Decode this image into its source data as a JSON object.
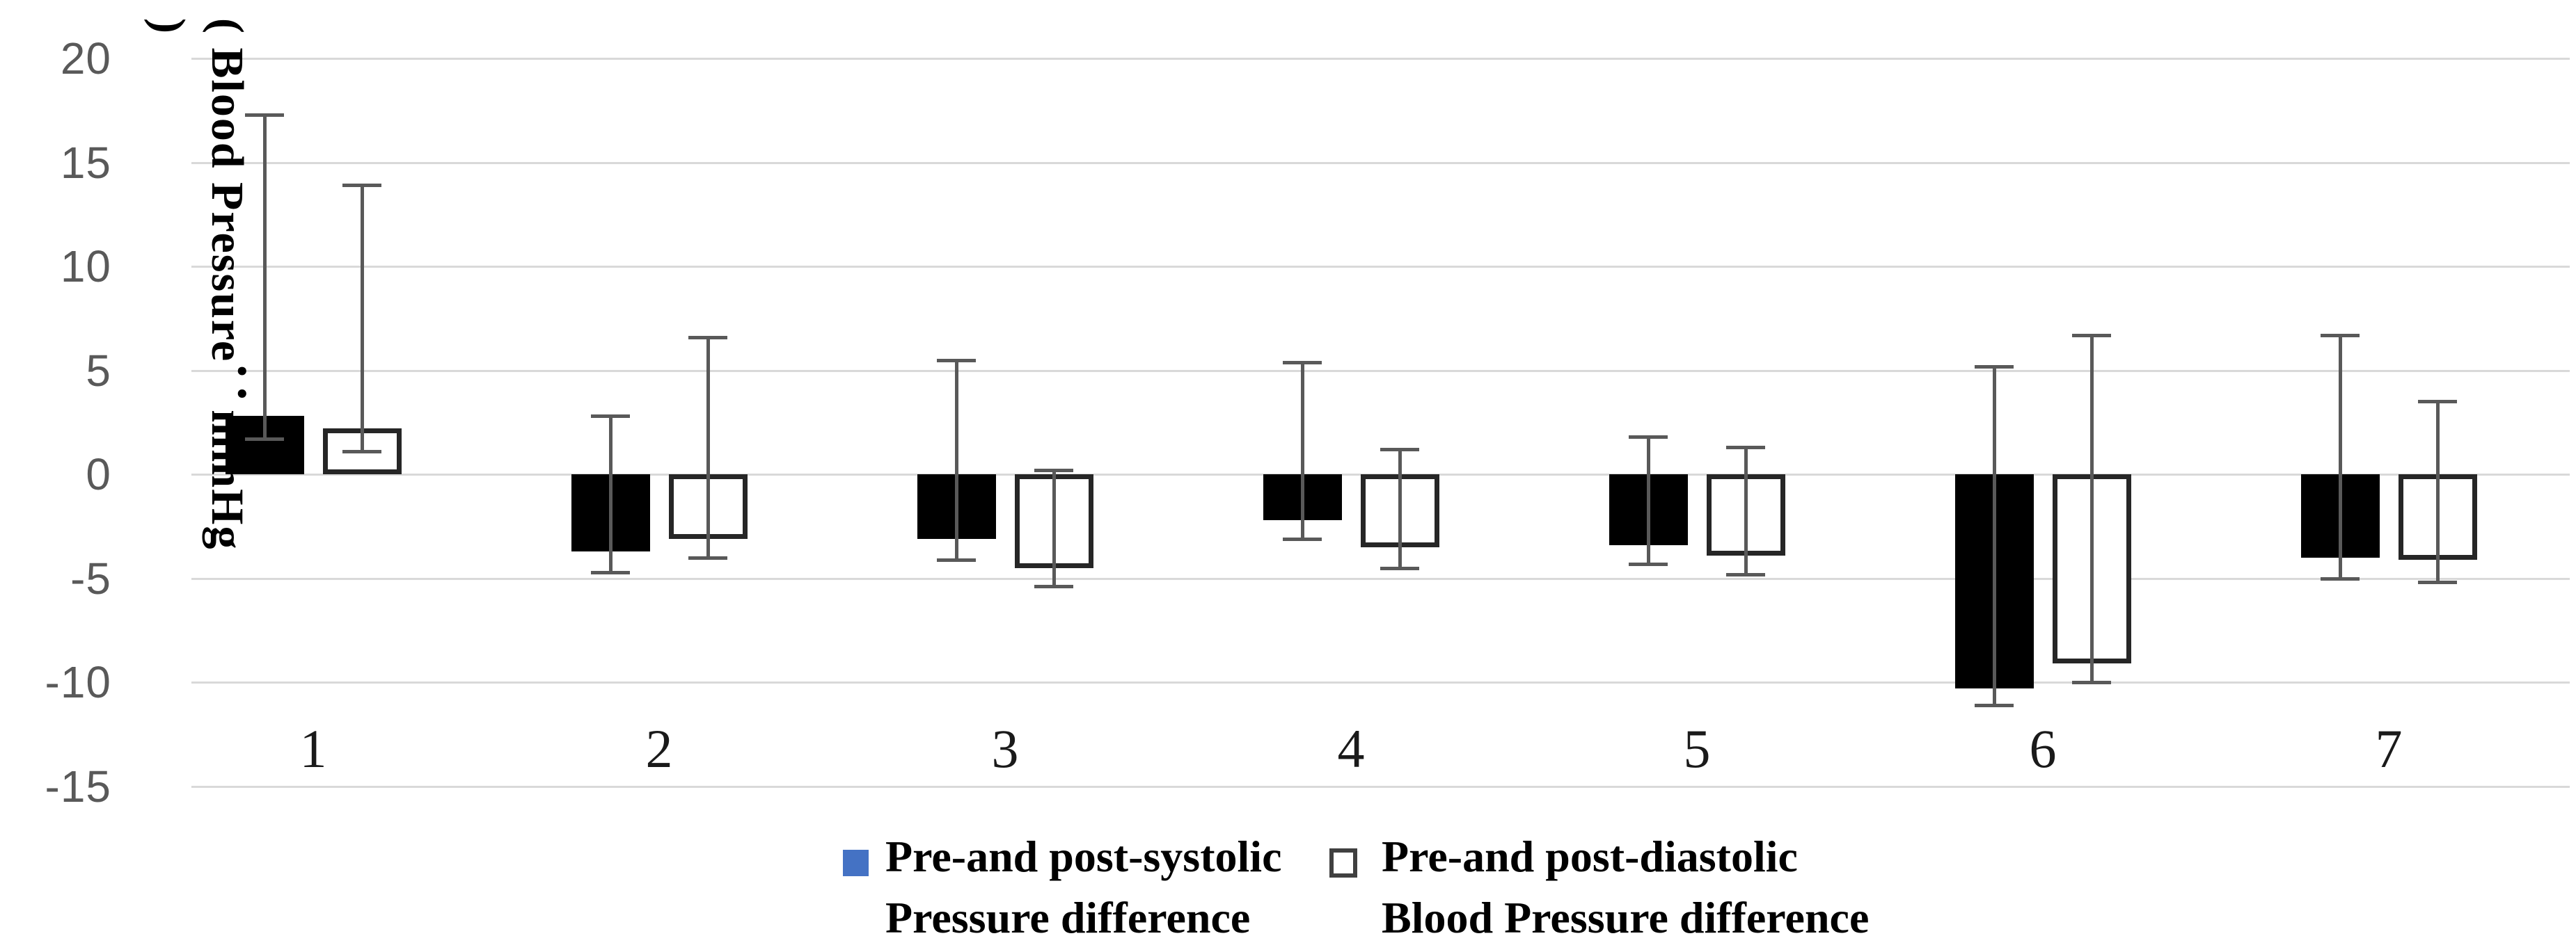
{
  "chart_data": {
    "type": "bar",
    "title": "",
    "ylabel": "( Blood Pressure：mmHg )",
    "xlabel": "",
    "ylim": [
      -15,
      20
    ],
    "yticks": [
      20,
      15,
      10,
      5,
      0,
      -5,
      -10,
      -15
    ],
    "grid": "horizontal",
    "gridline_color": "#d9d9d9",
    "error_bar_color": "#595959",
    "axis_tick_color": "#595959",
    "category_label_color": "#1a1a1a",
    "categories": [
      "1",
      "2",
      "3",
      "4",
      "5",
      "6",
      "7"
    ],
    "series": [
      {
        "name": "Pre-and post-systolic Pressure difference",
        "style": "solid",
        "fill": "#000000",
        "values": [
          2.8,
          -3.7,
          -3.1,
          -2.2,
          -3.4,
          -10.3,
          -4.0
        ],
        "whisker_top": [
          17.3,
          2.8,
          5.5,
          5.4,
          1.8,
          5.2,
          6.7
        ],
        "whisker_bottom": [
          1.7,
          -4.7,
          -4.1,
          -3.1,
          -4.3,
          -11.1,
          -5.0
        ]
      },
      {
        "name": "Pre-and post-diastolic Blood Pressure difference",
        "style": "outline",
        "fill": "#ffffff",
        "stroke": "#262626",
        "values": [
          2.2,
          -3.1,
          -4.5,
          -3.5,
          -3.9,
          -9.1,
          -4.1
        ],
        "whisker_top": [
          13.9,
          6.6,
          0.2,
          1.2,
          1.3,
          6.7,
          3.5
        ],
        "whisker_bottom": [
          1.1,
          -4.0,
          -5.4,
          -4.5,
          -4.8,
          -10.0,
          -5.2
        ]
      }
    ],
    "legend": {
      "position": "bottom",
      "items": [
        {
          "marker": "filled-square",
          "marker_color": "#4472C4",
          "lines": [
            "Pre-and post-systolic",
            "Pressure difference"
          ]
        },
        {
          "marker": "open-square",
          "marker_color": "#ffffff",
          "marker_border": "#404040",
          "lines": [
            "Pre-and post-diastolic",
            "Blood Pressure difference"
          ]
        }
      ]
    }
  }
}
